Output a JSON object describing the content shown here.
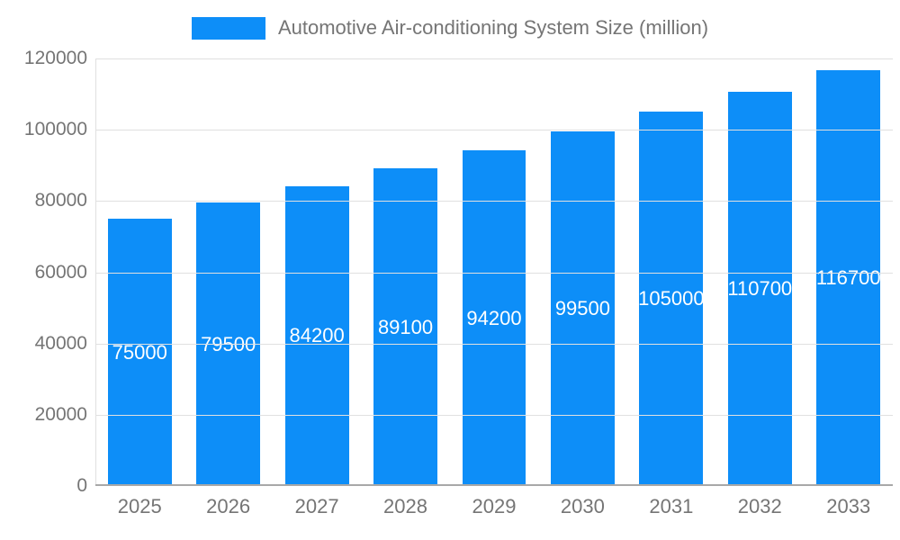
{
  "chart_data": {
    "type": "bar",
    "title": "Automotive Air-conditioning System Size (million)",
    "categories": [
      "2025",
      "2026",
      "2027",
      "2028",
      "2029",
      "2030",
      "2031",
      "2032",
      "2033"
    ],
    "values": [
      75000,
      79500,
      84200,
      89100,
      94200,
      99500,
      105000,
      110700,
      116700
    ],
    "value_labels": [
      "75000",
      "79500",
      "84200",
      "89100",
      "94200",
      "99500",
      "105000",
      "110700",
      "116700"
    ],
    "xlabel": "",
    "ylabel": "",
    "ylim": [
      0,
      120000
    ],
    "ytick_interval": 20000,
    "ytick_labels": [
      "0",
      "20000",
      "40000",
      "60000",
      "80000",
      "100000",
      "120000"
    ],
    "grid": true,
    "legend_position": "top",
    "colors": {
      "bar": "#0D8EF8",
      "bar_label": "#ffffff",
      "axis_text": "#757575",
      "grid_line": "#e0e0e0",
      "axis_line": "#a8a8a8",
      "background": "#ffffff"
    }
  }
}
